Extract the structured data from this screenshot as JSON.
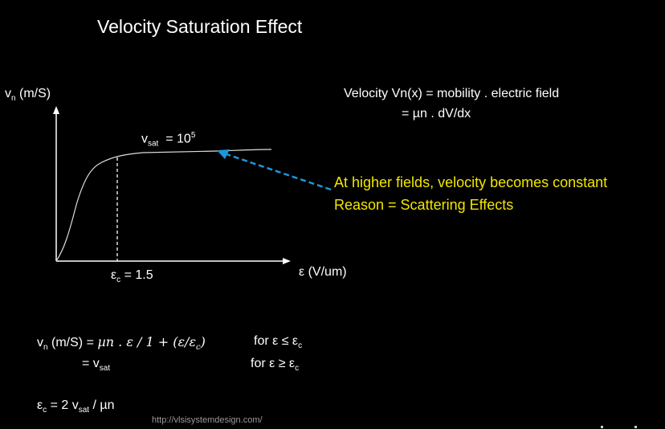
{
  "title": "Velocity Saturation Effect",
  "diagram": {
    "y_axis": {
      "symbol": "v",
      "sub": "n",
      "unit": "(m/S)"
    },
    "x_axis": {
      "symbol": "ε",
      "unit": "(V/um)"
    },
    "ec": {
      "symbol": "ε",
      "sub": "c",
      "value": "= 1.5"
    },
    "vsat": {
      "symbol": "v",
      "sub": "sat",
      "eq": "= 10",
      "sup": "5"
    },
    "arrow_color": "#1e96d8",
    "curve_color": "#dddddd"
  },
  "definition": {
    "line1": "Velocity Vn(x) = mobility . electric field",
    "line2": "= µn . dV/dx"
  },
  "note": {
    "line1": "At higher fields, velocity becomes constant",
    "line2": "Reason = Scattering Effects",
    "color": "#f2e600"
  },
  "formula": {
    "l1_lhs": "v",
    "l1_lhs_sub": "n",
    "l1_lhs_unit": "(m/S) =",
    "l1_math": "µn . ε / 1 + (ε/ε",
    "l1_math_sub": "c",
    "l1_math_end": ")",
    "l1_cond": "for ε ≤ ε",
    "l1_cond_sub": "c",
    "l2_eq": "= v",
    "l2_sub": "sat",
    "l2_cond": "for ε ≥ ε",
    "l2_cond_sub": "c",
    "l3_a": "ε",
    "l3_a_sub": "c",
    "l3_b": "= 2 v",
    "l3_b_sub": "sat",
    "l3_c": "/ µn"
  },
  "url": "http://vlsisystemdesign.com/"
}
